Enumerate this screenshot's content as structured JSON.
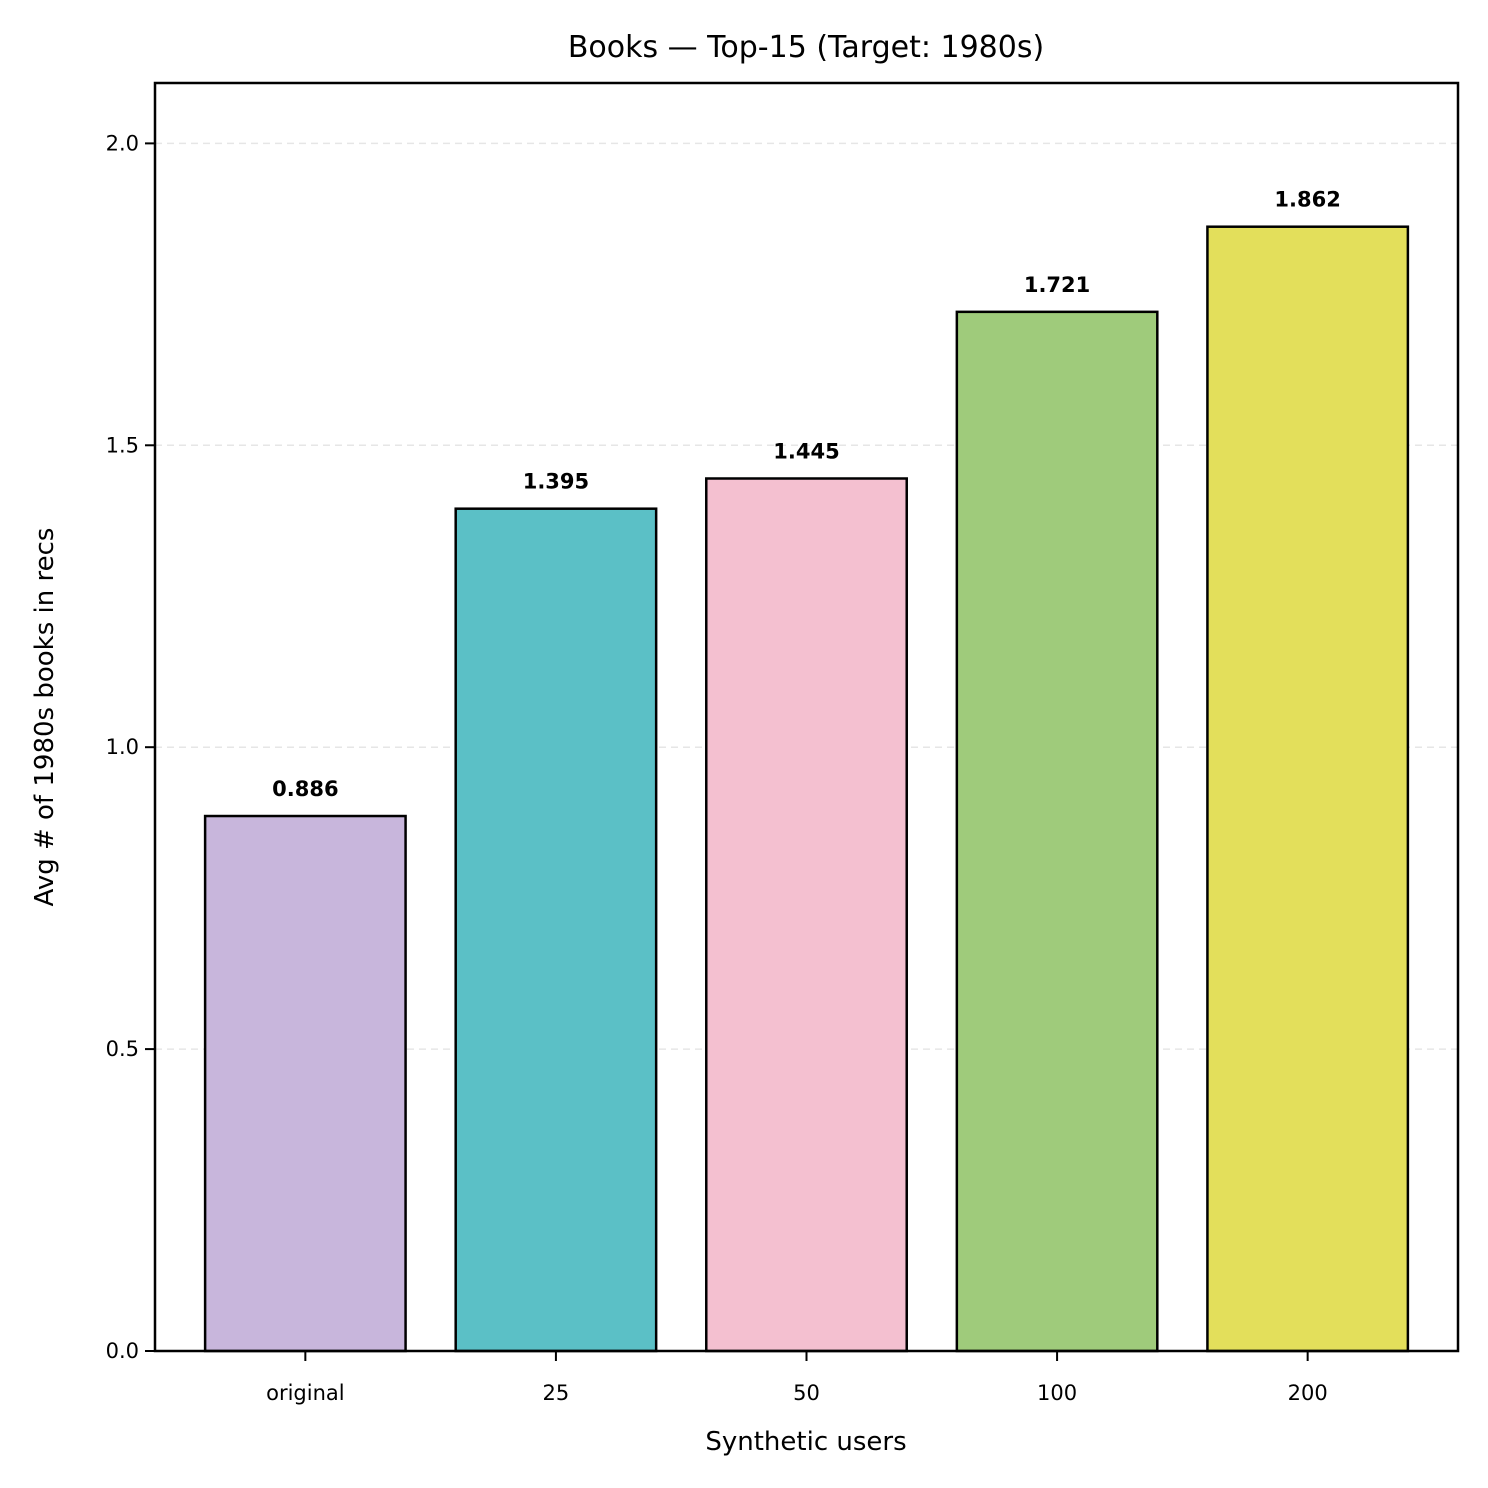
{
  "chart_data": {
    "type": "bar",
    "title": "Books — Top-15 (Target: 1980s)",
    "xlabel": "Synthetic users",
    "ylabel": "Avg # of 1980s books in recs",
    "categories": [
      "original",
      "25",
      "50",
      "100",
      "200"
    ],
    "values": [
      0.886,
      1.395,
      1.445,
      1.721,
      1.862
    ],
    "value_labels": [
      "0.886",
      "1.395",
      "1.445",
      "1.721",
      "1.862"
    ],
    "colors": [
      "#c8b6dc",
      "#5bc0c6",
      "#f4c0d0",
      "#9fcb7b",
      "#e3df5b"
    ],
    "ylim": [
      0,
      2.1
    ],
    "yticks": [
      0.0,
      0.5,
      1.0,
      1.5,
      2.0
    ],
    "ytick_labels": [
      "0.0",
      "0.5",
      "1.0",
      "1.5",
      "2.0"
    ],
    "grid": "horizontal dashed",
    "legend": "none"
  }
}
